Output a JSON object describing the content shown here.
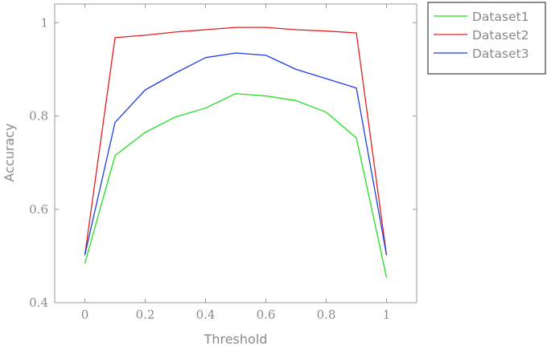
{
  "chart_data": {
    "type": "line",
    "title": "",
    "xlabel": "Threshold",
    "ylabel": "Accuracy",
    "xlim": [
      -0.1,
      1.1
    ],
    "ylim": [
      0.4,
      1.04
    ],
    "x_ticks": [
      0,
      0.2,
      0.4,
      0.6,
      0.8,
      1
    ],
    "x_tick_labels": [
      "0",
      "0.2",
      "0.4",
      "0.6",
      "0.8",
      "1"
    ],
    "y_ticks": [
      0.4,
      0.6,
      0.8,
      1
    ],
    "y_tick_labels": [
      "0.4",
      "0.6",
      "0.8",
      "1"
    ],
    "grid": false,
    "legend_position": "outside-top-right",
    "x": [
      0,
      0.1,
      0.2,
      0.3,
      0.4,
      0.5,
      0.6,
      0.7,
      0.8,
      0.9,
      1
    ],
    "series": [
      {
        "name": "Dataset1",
        "color": "#22dd22",
        "values": [
          0.484,
          0.715,
          0.765,
          0.798,
          0.817,
          0.848,
          0.843,
          0.833,
          0.808,
          0.753,
          0.454
        ]
      },
      {
        "name": "Dataset2",
        "color": "#e02020",
        "values": [
          0.502,
          0.968,
          0.973,
          0.98,
          0.985,
          0.99,
          0.99,
          0.985,
          0.982,
          0.978,
          0.502
        ]
      },
      {
        "name": "Dataset3",
        "color": "#1f3fe0",
        "values": [
          0.502,
          0.786,
          0.856,
          0.892,
          0.925,
          0.935,
          0.93,
          0.9,
          0.88,
          0.86,
          0.502
        ]
      }
    ]
  }
}
